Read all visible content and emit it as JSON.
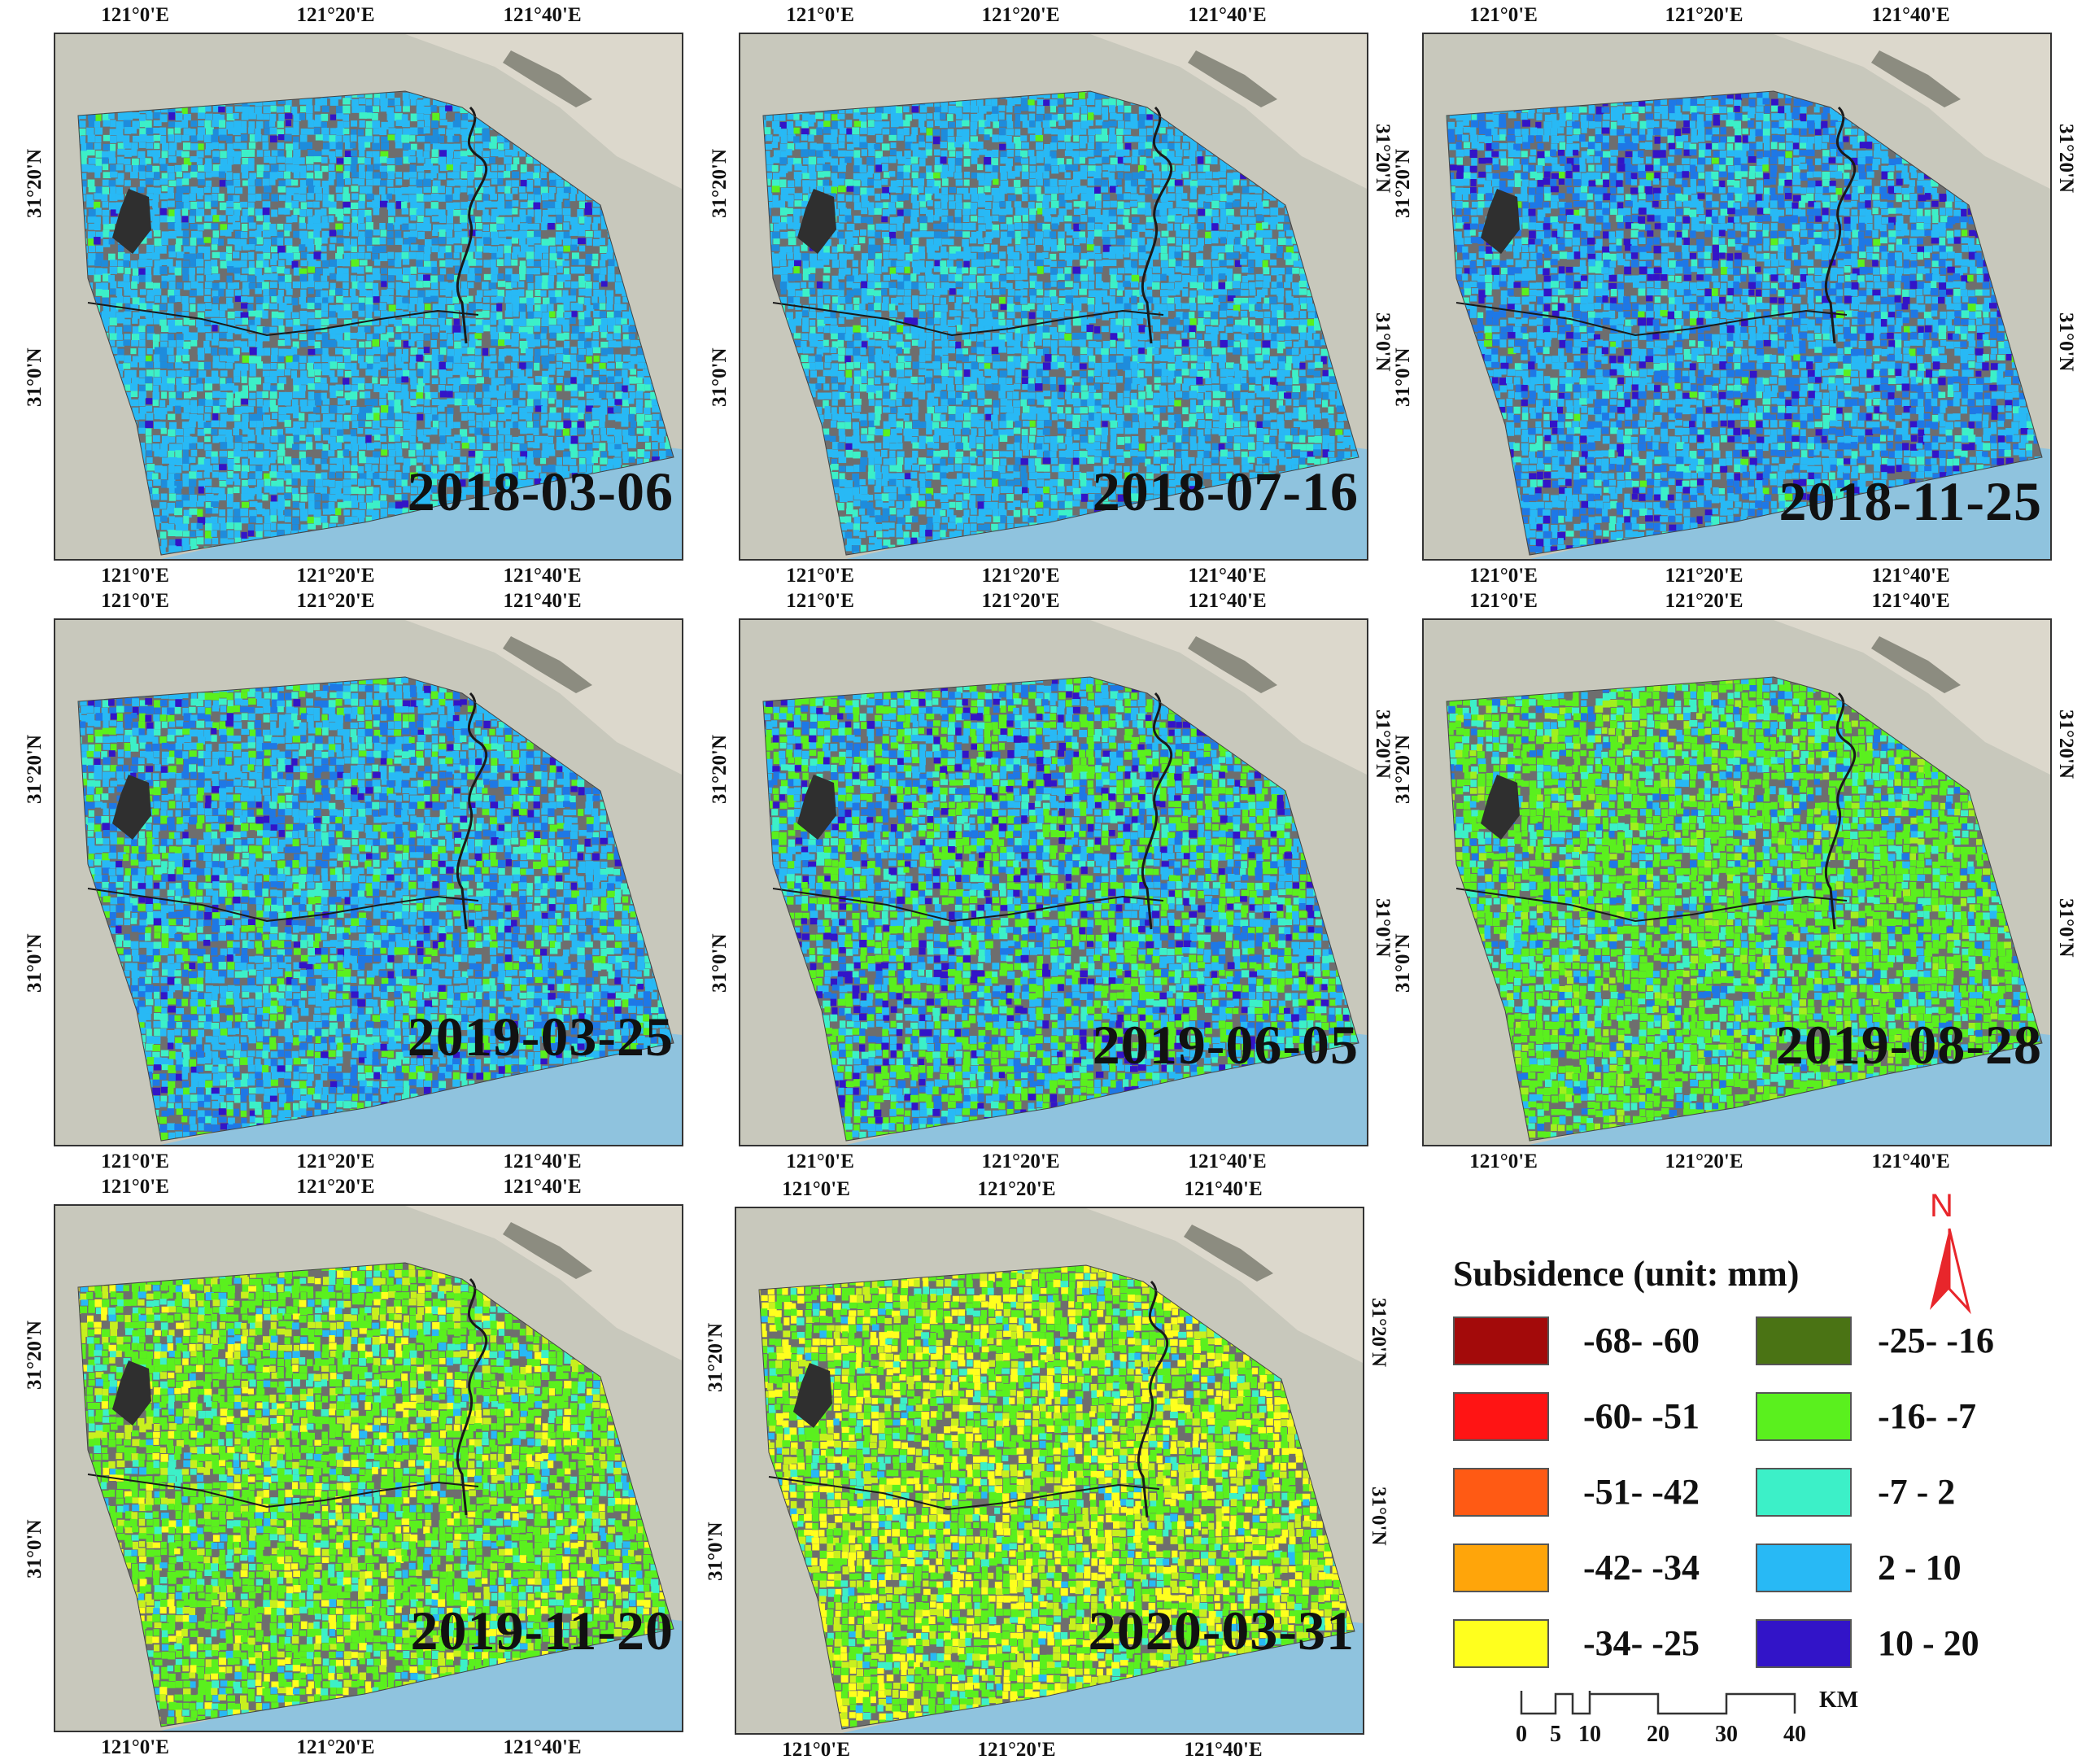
{
  "panels": [
    {
      "date": "2018-03-06",
      "top_ticks": [
        "121°0'E",
        "121°20'E",
        "121°40'E"
      ],
      "bottom_ticks": [
        "121°0'E",
        "121°20'E",
        "121°40'E"
      ],
      "left_ticks": [
        "31°20'N",
        "31°0'N"
      ],
      "right_ticks": [],
      "palette": "blue"
    },
    {
      "date": "2018-07-16",
      "top_ticks": [
        "121°0'E",
        "121°20'E",
        "121°40'E"
      ],
      "bottom_ticks": [
        "121°0'E",
        "121°20'E",
        "121°40'E"
      ],
      "left_ticks": [
        "31°20'N",
        "31°0'N"
      ],
      "right_ticks": [
        "31°20'N",
        "31°0'N"
      ],
      "palette": "blue"
    },
    {
      "date": "2018-11-25",
      "top_ticks": [
        "121°0'E",
        "121°20'E",
        "121°40'E"
      ],
      "bottom_ticks": [
        "121°0'E",
        "121°20'E",
        "121°40'E"
      ],
      "left_ticks": [
        "31°20'N",
        "31°0'N"
      ],
      "right_ticks": [
        "31°20'N",
        "31°0'N"
      ],
      "palette": "deepblue"
    },
    {
      "date": "2019-03-25",
      "top_ticks": [
        "121°0'E",
        "121°20'E",
        "121°40'E"
      ],
      "bottom_ticks": [
        "121°0'E",
        "121°20'E",
        "121°40'E"
      ],
      "left_ticks": [
        "31°20'N",
        "31°0'N"
      ],
      "right_ticks": [],
      "palette": "bluegreen"
    },
    {
      "date": "2019-06-05",
      "top_ticks": [
        "121°0'E",
        "121°20'E",
        "121°40'E"
      ],
      "bottom_ticks": [
        "121°0'E",
        "121°20'E",
        "121°40'E"
      ],
      "left_ticks": [
        "31°20'N",
        "31°0'N"
      ],
      "right_ticks": [
        "31°20'N",
        "31°0'N"
      ],
      "palette": "mixed"
    },
    {
      "date": "2019-08-28",
      "top_ticks": [
        "121°0'E",
        "121°20'E",
        "121°40'E"
      ],
      "bottom_ticks": [
        "121°0'E",
        "121°20'E",
        "121°40'E"
      ],
      "left_ticks": [
        "31°20'N",
        "31°0'N"
      ],
      "right_ticks": [
        "31°20'N",
        "31°0'N"
      ],
      "palette": "green"
    },
    {
      "date": "2019-11-20",
      "top_ticks": [
        "121°0'E",
        "121°20'E",
        "121°40'E"
      ],
      "bottom_ticks": [
        "121°0'E",
        "121°20'E",
        "121°40'E"
      ],
      "left_ticks": [
        "31°20'N",
        "31°0'N"
      ],
      "right_ticks": [],
      "palette": "greenyellow"
    },
    {
      "date": "2020-03-31",
      "top_ticks": [
        "121°0'E",
        "121°20'E",
        "121°40'E"
      ],
      "bottom_ticks": [
        "121°0'E",
        "121°20'E",
        "121°40'E"
      ],
      "left_ticks": [
        "31°20'N",
        "31°0'N"
      ],
      "right_ticks": [
        "31°20'N",
        "31°0'N"
      ],
      "palette": "yellow"
    }
  ],
  "legend": {
    "title": "Subsidence (unit: mm)",
    "items": [
      {
        "label": "-68- -60",
        "color": "#a30a0a"
      },
      {
        "label": "-60- -51",
        "color": "#ff1414"
      },
      {
        "label": "-51- -42",
        "color": "#ff5a14"
      },
      {
        "label": "-42- -34",
        "color": "#ffa50a"
      },
      {
        "label": "-34- -25",
        "color": "#ffff1e"
      },
      {
        "label": "-25- -16",
        "color": "#4a7314"
      },
      {
        "label": "-16- -7",
        "color": "#5af01e"
      },
      {
        "label": "-7 - 2",
        "color": "#3cf0c8"
      },
      {
        "label": "2 - 10",
        "color": "#28b9f5"
      },
      {
        "label": "10 - 20",
        "color": "#3214c8"
      }
    ]
  },
  "north_arrow": {
    "label": "N",
    "color": "#e8262b"
  },
  "scale_bar": {
    "unit": "KM",
    "ticks": [
      "0",
      "5",
      "10",
      "20",
      "30",
      "40"
    ]
  },
  "map_colors": {
    "gray": "#6e6e6e",
    "water": "#8fc3de",
    "land": "#c8c8bc",
    "river": "#1a1a1a"
  }
}
